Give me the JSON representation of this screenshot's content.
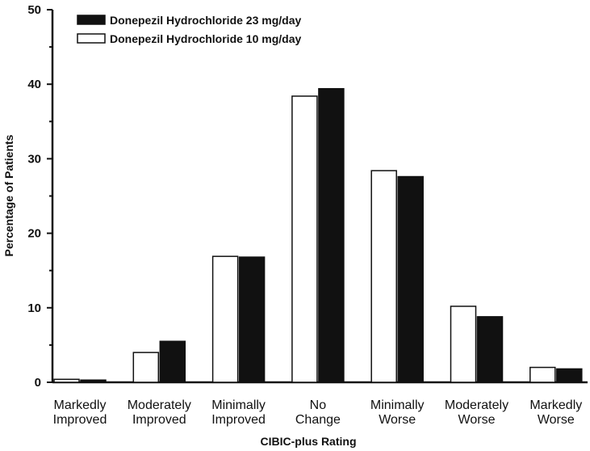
{
  "chart_data": {
    "type": "bar",
    "title": "",
    "xlabel": "CIBIC-plus Rating",
    "ylabel": "Percentage of Patients",
    "ylim": [
      0,
      50
    ],
    "yticks": [
      "0",
      "10",
      "20",
      "30",
      "40",
      "50"
    ],
    "categories": [
      [
        "Markedly",
        "Improved"
      ],
      [
        "Moderately",
        "Improved"
      ],
      [
        "Minimally",
        "Improved"
      ],
      [
        "No",
        "Change"
      ],
      [
        "Minimally",
        "Worse"
      ],
      [
        "Moderately",
        "Worse"
      ],
      [
        "Markedly",
        "Worse"
      ]
    ],
    "series": [
      {
        "name": "Donepezil Hydrochloride 10 mg/day",
        "fill": "#ffffff",
        "values": [
          0.4,
          4.0,
          16.9,
          38.4,
          28.4,
          10.2,
          2.0
        ]
      },
      {
        "name": "Donepezil Hydrochloride 23 mg/day",
        "fill": "#111111",
        "values": [
          0.3,
          5.5,
          16.8,
          39.4,
          27.6,
          8.8,
          1.8
        ]
      }
    ],
    "legend": {
      "position": "top-left",
      "entries": [
        "Donepezil Hydrochloride 23 mg/day",
        "Donepezil Hydrochloride 10 mg/day"
      ]
    },
    "colors": {
      "10mg": "#ffffff",
      "23mg": "#111111",
      "axis": "#111111"
    },
    "grid": false
  }
}
